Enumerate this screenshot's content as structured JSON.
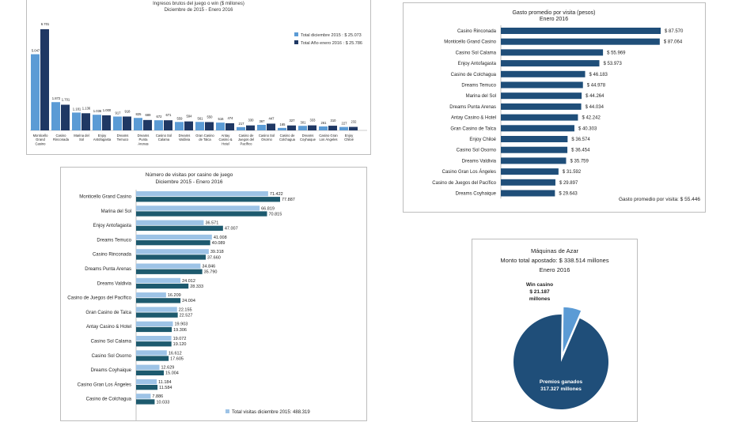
{
  "colors": {
    "navy": "#1f4e79",
    "light": "#5b9bd5",
    "dark": "#1f3864",
    "pale": "#9dc3e6",
    "teal": "#1d5a6e"
  },
  "chart_data": [
    {
      "type": "bar",
      "title": "Ingresos brutos del juego o win ($ millones)",
      "subtitle": "Diciembre de 2015 - Enero 2016",
      "categories": [
        "Monticello Grand Casino",
        "Casino Rinconada",
        "Marina del Sol",
        "Enjoy Antofagasta",
        "Dreams Temuco",
        "Dreams Punta Arenas",
        "Casino Sol Calama",
        "Dreams Valdivia",
        "Gran Casino de Talca",
        "Antay Casino & Hotel",
        "Casino de Juegos del Pacífico",
        "Casino Sol Osorno",
        "Casino de Colchagua",
        "Dreams Coyhaique",
        "Casino Gran Los Ángeles",
        "Enjoy Chiloé"
      ],
      "series": [
        {
          "name": "Total diciembre 2015 : $ 25.073",
          "values": [
            5.047,
            1.872,
            1.181,
            1.036,
            0.917,
            0.825,
            0.672,
            0.559,
            0.561,
            0.516,
            0.217,
            0.367,
            0.165,
            0.301,
            0.261,
            0.227
          ],
          "labels": [
            "5.047",
            "1.872",
            "1.181",
            "1.036",
            "917",
            "825",
            "672",
            "559",
            "561",
            "516",
            "217",
            "367",
            "165",
            "301",
            "261",
            "227"
          ]
        },
        {
          "name": "Total Año enero 2016 : $ 25.786",
          "values": [
            6.701,
            1.701,
            1.136,
            1.0,
            0.918,
            0.689,
            0.671,
            0.594,
            0.55,
            0.474,
            0.33,
            0.447,
            0.327,
            0.333,
            0.31,
            0.232
          ],
          "labels": [
            "6.701",
            "1.701",
            "1.136",
            "1.000",
            "918",
            "689",
            "671",
            "594",
            "550",
            "474",
            "330",
            "447",
            "327",
            "333",
            "310",
            "232"
          ]
        }
      ]
    },
    {
      "type": "bar",
      "title": "Gasto promedio por visita (pesos)",
      "subtitle": "Enero 2016",
      "note": "Gasto promedio por visita: $ 55.446",
      "categories": [
        "Casino Rinconada",
        "Monticello Grand Casino",
        "Casino Sol Calama",
        "Enjoy Antofagasta",
        "Casino de Colchagua",
        "Dreams Temuco",
        "Marina del Sol",
        "Dreams Punta Arenas",
        "Antay Casino & Hotel",
        "Gran Casino de Talca",
        "Enjoy Chiloé",
        "Casino Sol Osorno",
        "Dreams Valdivia",
        "Casino Gran Los Ángeles",
        "Casino de Juegos del Pacífico",
        "Dreams Coyhaique"
      ],
      "values": [
        87570,
        87064,
        55969,
        53973,
        46183,
        44978,
        44264,
        44034,
        42242,
        40303,
        36574,
        36454,
        35759,
        31592,
        29897,
        29643
      ],
      "labels": [
        "$ 87.570",
        "$ 87.064",
        "$ 55.969",
        "$ 53.973",
        "$ 46.183",
        "$ 44.978",
        "$ 44.264",
        "$ 44.034",
        "$ 42.242",
        "$ 40.303",
        "$ 36.574",
        "$ 36.454",
        "$ 35.759",
        "$ 31.592",
        "$ 29.897",
        "$ 29.643"
      ]
    },
    {
      "type": "bar",
      "title": "Número de visitas por casino de juego",
      "subtitle": "Diciembre 2015 - Enero 2016",
      "categories": [
        "Monticello Grand Casino",
        "Marina del Sol",
        "Enjoy Antofagasta",
        "Dreams Temuco",
        "Casino Rinconada",
        "Dreams Punta Arenas",
        "Dreams Valdivia",
        "Casino de Juegos del Pacífico",
        "Gran Casino de Talca",
        "Antay Casino & Hotel",
        "Casino Sol Calama",
        "Casino Sol Osorno",
        "Dreams Coyhaique",
        "Casino Gran Los Ángeles",
        "Casino de Colchagua"
      ],
      "series": [
        {
          "name": "Total visitas diciembre 2015: 488.319",
          "values": [
            71422,
            66819,
            36571,
            41008,
            39318,
            34846,
            24012,
            16209,
            22155,
            19903,
            19072,
            16612,
            12629,
            11184,
            7886
          ],
          "labels": [
            "71.422",
            "66.819",
            "36.571",
            "41.008",
            "39.318",
            "34.846",
            "24.012",
            "16.209",
            "22.155",
            "19.903",
            "19.072",
            "16.612",
            "12.629",
            "11.184",
            "7.886"
          ]
        },
        {
          "name": "",
          "values": [
            77887,
            70815,
            47007,
            40089,
            37660,
            35790,
            28333,
            24004,
            22527,
            19306,
            19120,
            17605,
            15004,
            11584,
            10033
          ],
          "labels": [
            "77.887",
            "70.815",
            "47.007",
            "40.089",
            "37.660",
            "35.790",
            "28.333",
            "24.004",
            "22.527",
            "19.306",
            "19.120",
            "17.605",
            "15.004",
            "11.584",
            "10.033"
          ]
        }
      ]
    },
    {
      "type": "pie",
      "title": "Máquinas de Azar",
      "subtitle": "Monto total apostado: $ 338.514 millones",
      "period": "Enero 2016",
      "slices": [
        {
          "label": "Premios ganados 317.327 millones",
          "value": 317327,
          "text1": "Premios ganados",
          "text2": "317.327 millones"
        },
        {
          "label": "Win casino $ 21.187 millones",
          "value": 21187,
          "text1": "Win casino",
          "text2": "$ 21.187",
          "text3": "millones"
        }
      ]
    }
  ]
}
